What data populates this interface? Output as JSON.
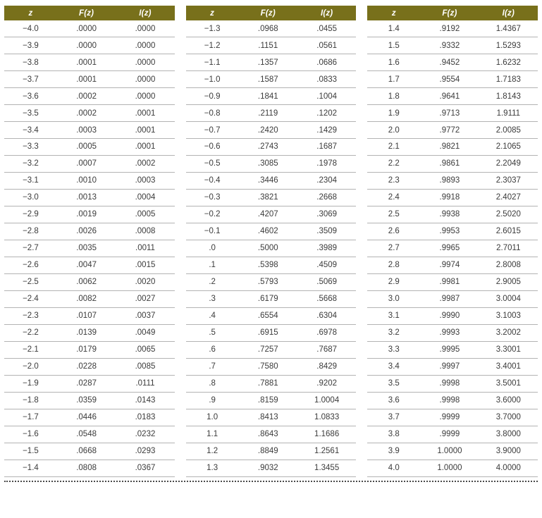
{
  "tables": [
    {
      "headers": [
        "z",
        "F(z)",
        "I(z)"
      ],
      "rows": [
        [
          "−4.0",
          ".0000",
          ".0000"
        ],
        [
          "−3.9",
          ".0000",
          ".0000"
        ],
        [
          "−3.8",
          ".0001",
          ".0000"
        ],
        [
          "−3.7",
          ".0001",
          ".0000"
        ],
        [
          "−3.6",
          ".0002",
          ".0000"
        ],
        [
          "−3.5",
          ".0002",
          ".0001"
        ],
        [
          "−3.4",
          ".0003",
          ".0001"
        ],
        [
          "−3.3",
          ".0005",
          ".0001"
        ],
        [
          "−3.2",
          ".0007",
          ".0002"
        ],
        [
          "−3.1",
          ".0010",
          ".0003"
        ],
        [
          "−3.0",
          ".0013",
          ".0004"
        ],
        [
          "−2.9",
          ".0019",
          ".0005"
        ],
        [
          "−2.8",
          ".0026",
          ".0008"
        ],
        [
          "−2.7",
          ".0035",
          ".0011"
        ],
        [
          "−2.6",
          ".0047",
          ".0015"
        ],
        [
          "−2.5",
          ".0062",
          ".0020"
        ],
        [
          "−2.4",
          ".0082",
          ".0027"
        ],
        [
          "−2.3",
          ".0107",
          ".0037"
        ],
        [
          "−2.2",
          ".0139",
          ".0049"
        ],
        [
          "−2.1",
          ".0179",
          ".0065"
        ],
        [
          "−2.0",
          ".0228",
          ".0085"
        ],
        [
          "−1.9",
          ".0287",
          ".0111"
        ],
        [
          "−1.8",
          ".0359",
          ".0143"
        ],
        [
          "−1.7",
          ".0446",
          ".0183"
        ],
        [
          "−1.6",
          ".0548",
          ".0232"
        ],
        [
          "−1.5",
          ".0668",
          ".0293"
        ],
        [
          "−1.4",
          ".0808",
          ".0367"
        ]
      ]
    },
    {
      "headers": [
        "z",
        "F(z)",
        "I(z)"
      ],
      "rows": [
        [
          "−1.3",
          ".0968",
          ".0455"
        ],
        [
          "−1.2",
          ".1151",
          ".0561"
        ],
        [
          "−1.1",
          ".1357",
          ".0686"
        ],
        [
          "−1.0",
          ".1587",
          ".0833"
        ],
        [
          "−0.9",
          ".1841",
          ".1004"
        ],
        [
          "−0.8",
          ".2119",
          ".1202"
        ],
        [
          "−0.7",
          ".2420",
          ".1429"
        ],
        [
          "−0.6",
          ".2743",
          ".1687"
        ],
        [
          "−0.5",
          ".3085",
          ".1978"
        ],
        [
          "−0.4",
          ".3446",
          ".2304"
        ],
        [
          "−0.3",
          ".3821",
          ".2668"
        ],
        [
          "−0.2",
          ".4207",
          ".3069"
        ],
        [
          "−0.1",
          ".4602",
          ".3509"
        ],
        [
          ".0",
          ".5000",
          ".3989"
        ],
        [
          ".1",
          ".5398",
          ".4509"
        ],
        [
          ".2",
          ".5793",
          ".5069"
        ],
        [
          ".3",
          ".6179",
          ".5668"
        ],
        [
          ".4",
          ".6554",
          ".6304"
        ],
        [
          ".5",
          ".6915",
          ".6978"
        ],
        [
          ".6",
          ".7257",
          ".7687"
        ],
        [
          ".7",
          ".7580",
          ".8429"
        ],
        [
          ".8",
          ".7881",
          ".9202"
        ],
        [
          ".9",
          ".8159",
          "1.0004"
        ],
        [
          "1.0",
          ".8413",
          "1.0833"
        ],
        [
          "1.1",
          ".8643",
          "1.1686"
        ],
        [
          "1.2",
          ".8849",
          "1.2561"
        ],
        [
          "1.3",
          ".9032",
          "1.3455"
        ]
      ]
    },
    {
      "headers": [
        "z",
        "F(z)",
        "I(z)"
      ],
      "rows": [
        [
          "1.4",
          ".9192",
          "1.4367"
        ],
        [
          "1.5",
          ".9332",
          "1.5293"
        ],
        [
          "1.6",
          ".9452",
          "1.6232"
        ],
        [
          "1.7",
          ".9554",
          "1.7183"
        ],
        [
          "1.8",
          ".9641",
          "1.8143"
        ],
        [
          "1.9",
          ".9713",
          "1.9111"
        ],
        [
          "2.0",
          ".9772",
          "2.0085"
        ],
        [
          "2.1",
          ".9821",
          "2.1065"
        ],
        [
          "2.2",
          ".9861",
          "2.2049"
        ],
        [
          "2.3",
          ".9893",
          "2.3037"
        ],
        [
          "2.4",
          ".9918",
          "2.4027"
        ],
        [
          "2.5",
          ".9938",
          "2.5020"
        ],
        [
          "2.6",
          ".9953",
          "2.6015"
        ],
        [
          "2.7",
          ".9965",
          "2.7011"
        ],
        [
          "2.8",
          ".9974",
          "2.8008"
        ],
        [
          "2.9",
          ".9981",
          "2.9005"
        ],
        [
          "3.0",
          ".9987",
          "3.0004"
        ],
        [
          "3.1",
          ".9990",
          "3.1003"
        ],
        [
          "3.2",
          ".9993",
          "3.2002"
        ],
        [
          "3.3",
          ".9995",
          "3.3001"
        ],
        [
          "3.4",
          ".9997",
          "3.4001"
        ],
        [
          "3.5",
          ".9998",
          "3.5001"
        ],
        [
          "3.6",
          ".9998",
          "3.6000"
        ],
        [
          "3.7",
          ".9999",
          "3.7000"
        ],
        [
          "3.8",
          ".9999",
          "3.8000"
        ],
        [
          "3.9",
          "1.0000",
          "3.9000"
        ],
        [
          "4.0",
          "1.0000",
          "4.0000"
        ]
      ]
    }
  ],
  "colors": {
    "header_background": "#78701b",
    "header_text": "#ffffff",
    "row_separator": "#b3b3b3",
    "body_text": "#3b3b3b"
  }
}
